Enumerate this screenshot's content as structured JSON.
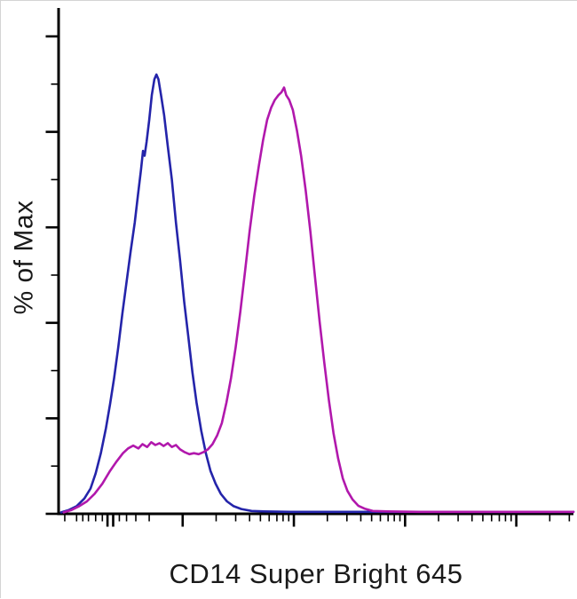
{
  "figure": {
    "background": "#ffffff"
  },
  "chart_data": {
    "type": "line",
    "subtype": "flow-cytometry-histogram-overlay",
    "title": "",
    "xlabel": "CD14 Super Bright 645",
    "ylabel": "% of Max",
    "x_scale": "biexponential",
    "xlim_norm": [
      0,
      1
    ],
    "ylim": [
      0,
      100
    ],
    "grid": false,
    "legend": "none",
    "axis_color": "#000000",
    "text_color": "#1a1a1a",
    "series": [
      {
        "name": "blue",
        "color": "#2424aa",
        "points": [
          [
            0.005,
            0.3
          ],
          [
            0.02,
            0.8
          ],
          [
            0.035,
            1.6
          ],
          [
            0.05,
            3.2
          ],
          [
            0.062,
            5.3
          ],
          [
            0.072,
            8.5
          ],
          [
            0.082,
            12.7
          ],
          [
            0.092,
            18
          ],
          [
            0.1,
            23
          ],
          [
            0.108,
            28.5
          ],
          [
            0.116,
            35
          ],
          [
            0.124,
            42
          ],
          [
            0.132,
            48.6
          ],
          [
            0.14,
            55
          ],
          [
            0.148,
            61
          ],
          [
            0.154,
            66.6
          ],
          [
            0.16,
            72
          ],
          [
            0.164,
            76
          ],
          [
            0.167,
            75
          ],
          [
            0.171,
            78
          ],
          [
            0.176,
            82.5
          ],
          [
            0.181,
            87.7
          ],
          [
            0.186,
            91
          ],
          [
            0.19,
            92
          ],
          [
            0.194,
            91
          ],
          [
            0.199,
            87.7
          ],
          [
            0.205,
            83.5
          ],
          [
            0.212,
            77
          ],
          [
            0.22,
            70
          ],
          [
            0.228,
            61
          ],
          [
            0.236,
            53
          ],
          [
            0.244,
            44.4
          ],
          [
            0.252,
            37
          ],
          [
            0.26,
            29.6
          ],
          [
            0.268,
            23.3
          ],
          [
            0.277,
            17.4
          ],
          [
            0.286,
            12.7
          ],
          [
            0.295,
            9
          ],
          [
            0.305,
            6.3
          ],
          [
            0.315,
            4.2
          ],
          [
            0.327,
            2.6
          ],
          [
            0.34,
            1.6
          ],
          [
            0.355,
            1.0
          ],
          [
            0.375,
            0.6
          ],
          [
            0.4,
            0.5
          ],
          [
            0.45,
            0.4
          ],
          [
            0.55,
            0.4
          ],
          [
            0.7,
            0.4
          ],
          [
            0.85,
            0.4
          ],
          [
            1.0,
            0.4
          ]
        ]
      },
      {
        "name": "magenta",
        "color": "#b118ac",
        "points": [
          [
            0.01,
            0.3
          ],
          [
            0.025,
            0.8
          ],
          [
            0.04,
            1.6
          ],
          [
            0.055,
            2.6
          ],
          [
            0.07,
            4.2
          ],
          [
            0.085,
            6.3
          ],
          [
            0.1,
            9
          ],
          [
            0.113,
            11
          ],
          [
            0.125,
            12.7
          ],
          [
            0.135,
            13.7
          ],
          [
            0.145,
            14.3
          ],
          [
            0.155,
            13.7
          ],
          [
            0.163,
            14.6
          ],
          [
            0.172,
            14.0
          ],
          [
            0.18,
            15.0
          ],
          [
            0.188,
            14.4
          ],
          [
            0.196,
            14.8
          ],
          [
            0.204,
            14.2
          ],
          [
            0.212,
            14.8
          ],
          [
            0.22,
            14.0
          ],
          [
            0.228,
            14.4
          ],
          [
            0.236,
            13.5
          ],
          [
            0.245,
            12.9
          ],
          [
            0.254,
            12.5
          ],
          [
            0.263,
            12.7
          ],
          [
            0.272,
            12.5
          ],
          [
            0.281,
            12.9
          ],
          [
            0.29,
            13.5
          ],
          [
            0.299,
            14.6
          ],
          [
            0.308,
            16.4
          ],
          [
            0.317,
            19
          ],
          [
            0.326,
            23.3
          ],
          [
            0.335,
            28.5
          ],
          [
            0.344,
            34.9
          ],
          [
            0.353,
            42.3
          ],
          [
            0.362,
            50.7
          ],
          [
            0.371,
            59.2
          ],
          [
            0.38,
            66.6
          ],
          [
            0.389,
            72.9
          ],
          [
            0.397,
            78.2
          ],
          [
            0.405,
            82.5
          ],
          [
            0.413,
            85.1
          ],
          [
            0.42,
            86.7
          ],
          [
            0.427,
            87.7
          ],
          [
            0.433,
            88.3
          ],
          [
            0.438,
            89.3
          ],
          [
            0.442,
            87.7
          ],
          [
            0.448,
            86.7
          ],
          [
            0.455,
            84.6
          ],
          [
            0.463,
            80.3
          ],
          [
            0.471,
            75
          ],
          [
            0.48,
            67.7
          ],
          [
            0.489,
            59.2
          ],
          [
            0.498,
            49.7
          ],
          [
            0.507,
            40.2
          ],
          [
            0.516,
            31.7
          ],
          [
            0.525,
            23.8
          ],
          [
            0.534,
            16.9
          ],
          [
            0.543,
            11.6
          ],
          [
            0.552,
            7.4
          ],
          [
            0.561,
            4.8
          ],
          [
            0.571,
            3.0
          ],
          [
            0.582,
            1.7
          ],
          [
            0.594,
            1.1
          ],
          [
            0.61,
            0.6
          ],
          [
            0.64,
            0.5
          ],
          [
            0.7,
            0.4
          ],
          [
            0.85,
            0.4
          ],
          [
            1.0,
            0.4
          ]
        ]
      }
    ],
    "x_ticks": [
      {
        "pos": 0.012,
        "major": false
      },
      {
        "pos": 0.035,
        "major": false
      },
      {
        "pos": 0.047,
        "major": false
      },
      {
        "pos": 0.058,
        "major": false
      },
      {
        "pos": 0.072,
        "major": false
      },
      {
        "pos": 0.085,
        "major": false
      },
      {
        "pos": 0.095,
        "major": true
      },
      {
        "pos": 0.106,
        "major": true
      },
      {
        "pos": 0.118,
        "major": false
      },
      {
        "pos": 0.132,
        "major": false
      },
      {
        "pos": 0.15,
        "major": false
      },
      {
        "pos": 0.176,
        "major": false
      },
      {
        "pos": 0.241,
        "major": true
      },
      {
        "pos": 0.306,
        "major": false
      },
      {
        "pos": 0.344,
        "major": false
      },
      {
        "pos": 0.371,
        "major": false
      },
      {
        "pos": 0.392,
        "major": false
      },
      {
        "pos": 0.409,
        "major": false
      },
      {
        "pos": 0.424,
        "major": false
      },
      {
        "pos": 0.436,
        "major": false
      },
      {
        "pos": 0.447,
        "major": false
      },
      {
        "pos": 0.457,
        "major": true
      },
      {
        "pos": 0.522,
        "major": false
      },
      {
        "pos": 0.56,
        "major": false
      },
      {
        "pos": 0.587,
        "major": false
      },
      {
        "pos": 0.608,
        "major": false
      },
      {
        "pos": 0.625,
        "major": false
      },
      {
        "pos": 0.64,
        "major": false
      },
      {
        "pos": 0.652,
        "major": false
      },
      {
        "pos": 0.663,
        "major": false
      },
      {
        "pos": 0.673,
        "major": true
      },
      {
        "pos": 0.738,
        "major": false
      },
      {
        "pos": 0.776,
        "major": false
      },
      {
        "pos": 0.803,
        "major": false
      },
      {
        "pos": 0.824,
        "major": false
      },
      {
        "pos": 0.841,
        "major": false
      },
      {
        "pos": 0.856,
        "major": false
      },
      {
        "pos": 0.868,
        "major": false
      },
      {
        "pos": 0.879,
        "major": false
      },
      {
        "pos": 0.889,
        "major": true
      },
      {
        "pos": 0.954,
        "major": false
      },
      {
        "pos": 0.992,
        "major": false
      }
    ],
    "y_ticks": [
      {
        "pos": 0,
        "major": true
      },
      {
        "pos": 10,
        "major": false
      },
      {
        "pos": 20,
        "major": true
      },
      {
        "pos": 30,
        "major": false
      },
      {
        "pos": 40,
        "major": true
      },
      {
        "pos": 50,
        "major": false
      },
      {
        "pos": 60,
        "major": true
      },
      {
        "pos": 70,
        "major": false
      },
      {
        "pos": 80,
        "major": true
      },
      {
        "pos": 90,
        "major": false
      },
      {
        "pos": 100,
        "major": true
      }
    ]
  }
}
